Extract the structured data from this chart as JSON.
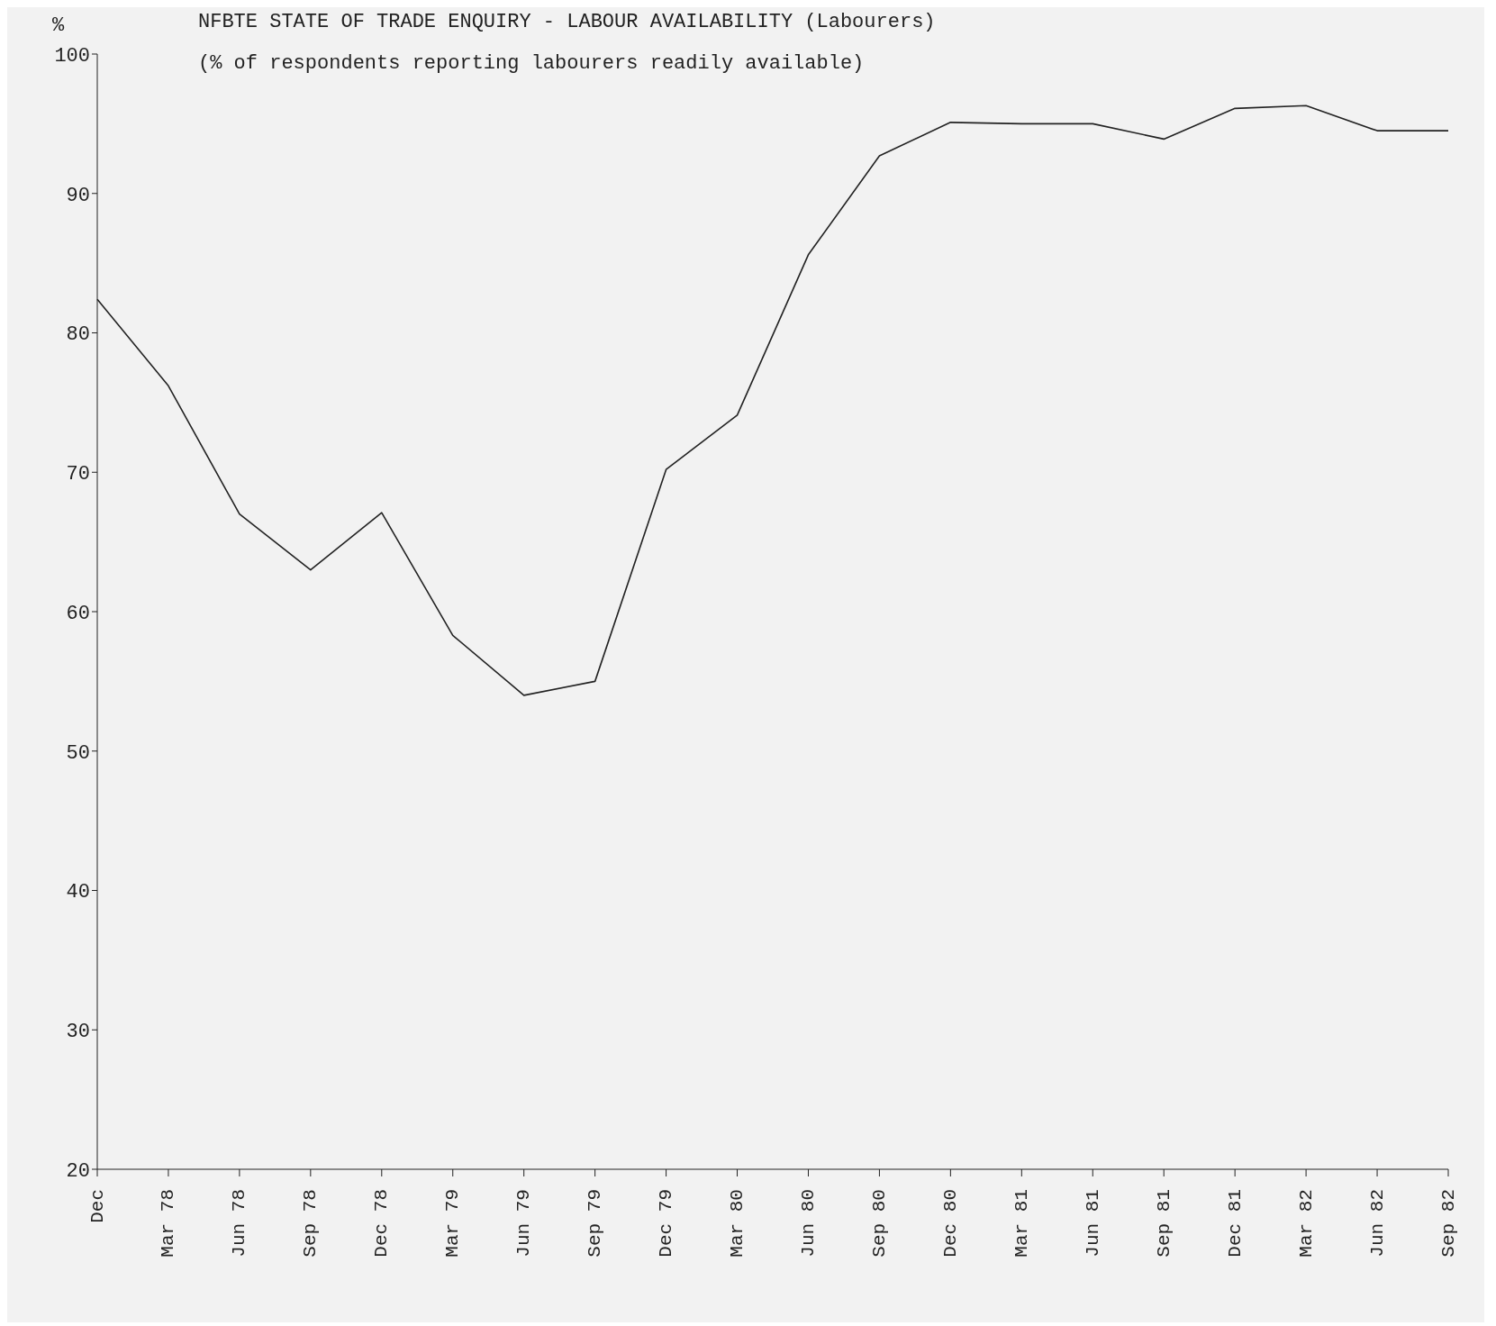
{
  "chart_data": {
    "type": "line",
    "title": "NFBTE STATE OF TRADE ENQUIRY - LABOUR AVAILABILITY (Labourers)",
    "subtitle": "(% of respondents reporting labourers readily available)",
    "ylabel": "%",
    "categories": [
      "Dec",
      "Mar 78",
      "Jun 78",
      "Sep 78",
      "Dec 78",
      "Mar 79",
      "Jun 79",
      "Sep 79",
      "Dec 79",
      "Mar 80",
      "Jun 80",
      "Sep 80",
      "Dec 80",
      "Mar 81",
      "Jun 81",
      "Sep 81",
      "Dec 81",
      "Mar 82",
      "Jun 82",
      "Sep 82"
    ],
    "series": [
      {
        "color": "#222222",
        "values": [
          82.4,
          76.2,
          67,
          63,
          67.1,
          58.3,
          54,
          55,
          70.2,
          74.1,
          85.6,
          92.7,
          95.1,
          95,
          95,
          93.9,
          96.1,
          96.3,
          94.5,
          94.5
        ]
      }
    ],
    "ylim": [
      20,
      100
    ],
    "yticks": [
      20,
      30,
      40,
      50,
      60,
      70,
      80,
      90,
      100
    ],
    "marker": "none",
    "line_style": "solid"
  }
}
